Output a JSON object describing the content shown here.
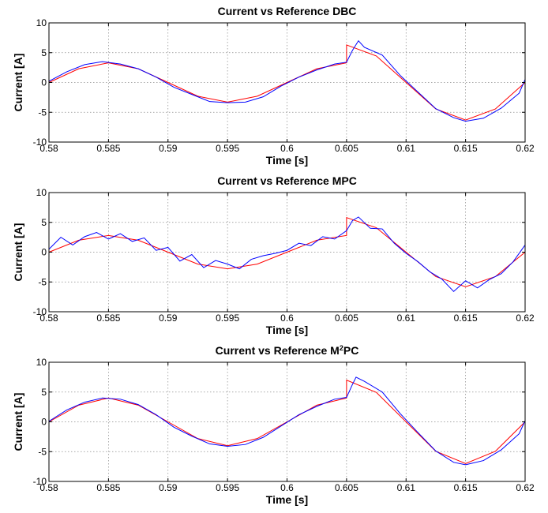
{
  "chart_data": [
    {
      "type": "line",
      "title": "Current vs Reference DBC",
      "xlabel": "Time [s]",
      "ylabel": "Current [A]",
      "xlim": [
        0.58,
        0.62
      ],
      "ylim": [
        -10,
        10
      ],
      "xticks": [
        0.58,
        0.585,
        0.59,
        0.595,
        0.6,
        0.605,
        0.61,
        0.615,
        0.62
      ],
      "xtick_labels": [
        "0.58",
        "0.585",
        "0.59",
        "0.595",
        "0.6",
        "0.605",
        "0.61",
        "0.615",
        "0.62"
      ],
      "yticks": [
        -10,
        -5,
        0,
        5,
        10
      ],
      "ytick_labels": [
        "-10",
        "-5",
        "0",
        "5",
        "10"
      ],
      "grid": true,
      "colors": {
        "reference": "#ff0000",
        "measured": "#0000ff"
      },
      "series": [
        {
          "x": [
            0.58,
            0.5825,
            0.585,
            0.5875,
            0.59,
            0.5925,
            0.595,
            0.5975,
            0.6,
            0.6025,
            0.605,
            0.605,
            0.6075,
            0.61,
            0.6125,
            0.615,
            0.6175,
            0.62
          ],
          "values": [
            0,
            2.3,
            3.3,
            2.3,
            0,
            -2.3,
            -3.3,
            -2.3,
            0,
            2.3,
            3.3,
            6.3,
            4.45,
            0,
            -4.45,
            -6.3,
            -4.45,
            0
          ]
        },
        {
          "x": [
            0.58,
            0.5815,
            0.583,
            0.5845,
            0.586,
            0.5875,
            0.589,
            0.5905,
            0.592,
            0.5935,
            0.595,
            0.5965,
            0.598,
            0.5995,
            0.601,
            0.6025,
            0.604,
            0.605,
            0.6055,
            0.606,
            0.6065,
            0.608,
            0.6095,
            0.611,
            0.6125,
            0.614,
            0.615,
            0.6165,
            0.618,
            0.6195,
            0.62
          ],
          "values": [
            0.2,
            1.8,
            3.0,
            3.5,
            3.1,
            2.3,
            0.9,
            -0.8,
            -2.0,
            -3.2,
            -3.4,
            -3.3,
            -2.4,
            -0.6,
            0.9,
            2.1,
            3.1,
            3.4,
            5.4,
            7.0,
            5.9,
            4.6,
            1.2,
            -1.6,
            -4.4,
            -5.9,
            -6.5,
            -6.0,
            -4.3,
            -1.8,
            0.5
          ]
        }
      ]
    },
    {
      "type": "line",
      "title": "Current vs Reference MPC",
      "xlabel": "Time [s]",
      "ylabel": "Current [A]",
      "xlim": [
        0.58,
        0.62
      ],
      "ylim": [
        -10,
        10
      ],
      "xticks": [
        0.58,
        0.585,
        0.59,
        0.595,
        0.6,
        0.605,
        0.61,
        0.615,
        0.62
      ],
      "xtick_labels": [
        "0.58",
        "0.585",
        "0.59",
        "0.595",
        "0.6",
        "0.605",
        "0.61",
        "0.615",
        "0.62"
      ],
      "yticks": [
        -10,
        -5,
        0,
        5,
        10
      ],
      "ytick_labels": [
        "-10",
        "-5",
        "0",
        "5",
        "10"
      ],
      "grid": true,
      "colors": {
        "reference": "#ff0000",
        "measured": "#0000ff"
      },
      "series": [
        {
          "x": [
            0.58,
            0.5825,
            0.585,
            0.5875,
            0.59,
            0.5925,
            0.595,
            0.5975,
            0.6,
            0.6025,
            0.605,
            0.605,
            0.6075,
            0.61,
            0.6125,
            0.615,
            0.6175,
            0.62
          ],
          "values": [
            0,
            2.0,
            2.8,
            2.0,
            0,
            -2.0,
            -2.8,
            -2.0,
            0,
            2.0,
            2.8,
            5.8,
            4.1,
            0,
            -4.1,
            -5.8,
            -4.1,
            0
          ]
        },
        {
          "x": [
            0.58,
            0.581,
            0.582,
            0.583,
            0.584,
            0.585,
            0.586,
            0.587,
            0.588,
            0.589,
            0.59,
            0.591,
            0.592,
            0.593,
            0.594,
            0.595,
            0.596,
            0.597,
            0.598,
            0.599,
            0.6,
            0.601,
            0.602,
            0.603,
            0.604,
            0.605,
            0.6055,
            0.606,
            0.607,
            0.608,
            0.609,
            0.61,
            0.611,
            0.612,
            0.613,
            0.614,
            0.615,
            0.616,
            0.617,
            0.618,
            0.619,
            0.62
          ],
          "values": [
            0.5,
            2.5,
            1.2,
            2.6,
            3.3,
            2.2,
            3.1,
            1.8,
            2.4,
            0.3,
            0.8,
            -1.5,
            -0.4,
            -2.6,
            -1.4,
            -2.0,
            -2.8,
            -1.2,
            -0.6,
            -0.2,
            0.3,
            1.5,
            1.1,
            2.6,
            2.2,
            3.6,
            5.3,
            5.9,
            4.0,
            3.9,
            1.5,
            -0.2,
            -1.6,
            -3.3,
            -4.5,
            -6.6,
            -4.8,
            -6.0,
            -4.6,
            -3.6,
            -1.6,
            1.2
          ]
        }
      ]
    },
    {
      "type": "line",
      "title": "Current vs Reference M",
      "title_superscript": "2",
      "title_suffix": "PC",
      "xlabel": "Time [s]",
      "ylabel": "Current [A]",
      "xlim": [
        0.58,
        0.62
      ],
      "ylim": [
        -10,
        10
      ],
      "xticks": [
        0.58,
        0.585,
        0.59,
        0.595,
        0.6,
        0.605,
        0.61,
        0.615,
        0.62
      ],
      "xtick_labels": [
        "0.58",
        "0.585",
        "0.59",
        "0.595",
        "0.6",
        "0.605",
        "0.61",
        "0.615",
        "0.62"
      ],
      "yticks": [
        -10,
        -5,
        0,
        5,
        10
      ],
      "ytick_labels": [
        "-10",
        "-5",
        "0",
        "5",
        "10"
      ],
      "grid": true,
      "colors": {
        "reference": "#ff0000",
        "measured": "#0000ff"
      },
      "series": [
        {
          "x": [
            0.58,
            0.5825,
            0.585,
            0.5875,
            0.59,
            0.5925,
            0.595,
            0.5975,
            0.6,
            0.6025,
            0.605,
            0.605,
            0.6075,
            0.61,
            0.6125,
            0.615,
            0.6175,
            0.62
          ],
          "values": [
            0,
            2.8,
            4.0,
            2.8,
            0,
            -2.8,
            -4.0,
            -2.8,
            0,
            2.8,
            4.0,
            7.0,
            4.95,
            0,
            -4.95,
            -7.0,
            -4.95,
            0
          ]
        },
        {
          "x": [
            0.58,
            0.5815,
            0.583,
            0.5845,
            0.586,
            0.5875,
            0.589,
            0.5905,
            0.592,
            0.5935,
            0.595,
            0.5965,
            0.598,
            0.5995,
            0.601,
            0.6025,
            0.604,
            0.605,
            0.6055,
            0.6058,
            0.6065,
            0.608,
            0.6095,
            0.611,
            0.6125,
            0.614,
            0.615,
            0.6165,
            0.618,
            0.6195,
            0.62
          ],
          "values": [
            0.1,
            2.0,
            3.3,
            4.0,
            3.8,
            2.9,
            1.2,
            -0.9,
            -2.4,
            -3.7,
            -4.1,
            -3.8,
            -2.6,
            -0.7,
            1.2,
            2.6,
            3.8,
            4.1,
            6.3,
            7.5,
            6.8,
            5.0,
            1.4,
            -1.8,
            -4.9,
            -6.8,
            -7.2,
            -6.5,
            -4.7,
            -2.0,
            0.2
          ]
        }
      ]
    }
  ]
}
